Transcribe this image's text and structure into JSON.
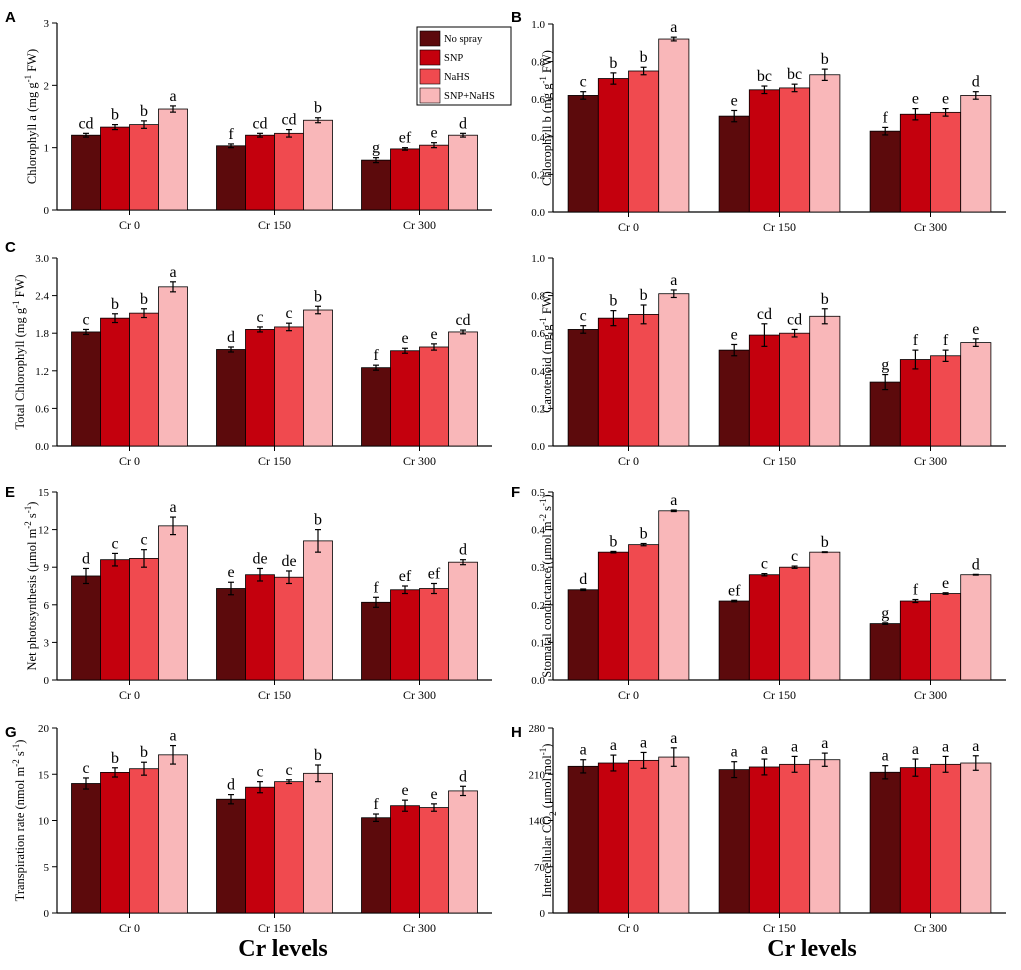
{
  "chart_data": [
    {
      "panel": "A",
      "type": "bar",
      "ylabel": "Chlorophyll a (mg g^-1 FW)",
      "ylim": [
        0,
        3
      ],
      "yticks": [
        "0",
        "1",
        "2",
        "3"
      ],
      "ytick_values": [
        0,
        1,
        2,
        3
      ],
      "categories": [
        "Cr 0",
        "Cr 150",
        "Cr 300"
      ],
      "series": [
        {
          "name": "No spray",
          "values": [
            1.2,
            1.03,
            0.8
          ],
          "errors": [
            0.03,
            0.03,
            0.04
          ],
          "letters": [
            "cd",
            "f",
            "g"
          ]
        },
        {
          "name": "SNP",
          "values": [
            1.33,
            1.2,
            0.98
          ],
          "errors": [
            0.04,
            0.03,
            0.02
          ],
          "letters": [
            "b",
            "cd",
            "ef"
          ]
        },
        {
          "name": "NaHS",
          "values": [
            1.37,
            1.23,
            1.04
          ],
          "errors": [
            0.06,
            0.06,
            0.04
          ],
          "letters": [
            "b",
            "cd",
            "e"
          ]
        },
        {
          "name": "SNP+NaHS",
          "values": [
            1.62,
            1.44,
            1.2
          ],
          "errors": [
            0.05,
            0.04,
            0.03
          ],
          "letters": [
            "a",
            "b",
            "d"
          ]
        }
      ]
    },
    {
      "panel": "B",
      "type": "bar",
      "ylabel": "Chlorophyll b (mg g^-1 FW)",
      "ylim": [
        0,
        1
      ],
      "yticks": [
        "0.0",
        "0.2",
        "0.4",
        "0.6",
        "0.8",
        "1.0"
      ],
      "ytick_values": [
        0,
        0.2,
        0.4,
        0.6,
        0.8,
        1.0
      ],
      "categories": [
        "Cr 0",
        "Cr 150",
        "Cr 300"
      ],
      "series": [
        {
          "name": "No spray",
          "values": [
            0.62,
            0.51,
            0.43
          ],
          "errors": [
            0.02,
            0.03,
            0.02
          ],
          "letters": [
            "c",
            "e",
            "f"
          ]
        },
        {
          "name": "SNP",
          "values": [
            0.71,
            0.65,
            0.52
          ],
          "errors": [
            0.03,
            0.02,
            0.03
          ],
          "letters": [
            "b",
            "bc",
            "e"
          ]
        },
        {
          "name": "NaHS",
          "values": [
            0.75,
            0.66,
            0.53
          ],
          "errors": [
            0.02,
            0.02,
            0.02
          ],
          "letters": [
            "b",
            "bc",
            "e"
          ]
        },
        {
          "name": "SNP+NaHS",
          "values": [
            0.92,
            0.73,
            0.62
          ],
          "errors": [
            0.01,
            0.03,
            0.02
          ],
          "letters": [
            "a",
            "b",
            "d"
          ]
        }
      ]
    },
    {
      "panel": "C",
      "type": "bar",
      "ylabel": "Total Chlorophyll (mg g^-1 FW)",
      "ylim": [
        0,
        3
      ],
      "yticks": [
        "0.0",
        "0.6",
        "1.2",
        "1.8",
        "2.4",
        "3.0"
      ],
      "ytick_values": [
        0,
        0.6,
        1.2,
        1.8,
        2.4,
        3.0
      ],
      "categories": [
        "Cr 0",
        "Cr 150",
        "Cr 300"
      ],
      "series": [
        {
          "name": "No spray",
          "values": [
            1.82,
            1.54,
            1.25
          ],
          "errors": [
            0.04,
            0.04,
            0.04
          ],
          "letters": [
            "c",
            "d",
            "f"
          ]
        },
        {
          "name": "SNP",
          "values": [
            2.04,
            1.86,
            1.52
          ],
          "errors": [
            0.07,
            0.04,
            0.04
          ],
          "letters": [
            "b",
            "c",
            "e"
          ]
        },
        {
          "name": "NaHS",
          "values": [
            2.12,
            1.9,
            1.58
          ],
          "errors": [
            0.07,
            0.06,
            0.05
          ],
          "letters": [
            "b",
            "c",
            "e"
          ]
        },
        {
          "name": "SNP+NaHS",
          "values": [
            2.54,
            2.17,
            1.82
          ],
          "errors": [
            0.08,
            0.06,
            0.03
          ],
          "letters": [
            "a",
            "b",
            "cd"
          ]
        }
      ]
    },
    {
      "panel": "D",
      "type": "bar",
      "ylabel": "Carotenoid (mg g^-1 FW)",
      "ylim": [
        0,
        1
      ],
      "yticks": [
        "0.0",
        "0.2",
        "0.4",
        "0.6",
        "0.8",
        "1.0"
      ],
      "ytick_values": [
        0,
        0.2,
        0.4,
        0.6,
        0.8,
        1.0
      ],
      "categories": [
        "Cr 0",
        "Cr 150",
        "Cr 300"
      ],
      "series": [
        {
          "name": "No spray",
          "values": [
            0.62,
            0.51,
            0.34
          ],
          "errors": [
            0.02,
            0.03,
            0.04
          ],
          "letters": [
            "c",
            "e",
            "g"
          ]
        },
        {
          "name": "SNP",
          "values": [
            0.68,
            0.59,
            0.46
          ],
          "errors": [
            0.04,
            0.06,
            0.05
          ],
          "letters": [
            "b",
            "cd",
            "f"
          ]
        },
        {
          "name": "NaHS",
          "values": [
            0.7,
            0.6,
            0.48
          ],
          "errors": [
            0.05,
            0.02,
            0.03
          ],
          "letters": [
            "b",
            "cd",
            "f"
          ]
        },
        {
          "name": "SNP+NaHS",
          "values": [
            0.81,
            0.69,
            0.55
          ],
          "errors": [
            0.02,
            0.04,
            0.02
          ],
          "letters": [
            "a",
            "b",
            "e"
          ]
        }
      ]
    },
    {
      "panel": "E",
      "type": "bar",
      "ylabel": "Net photosynthesis (μmol m^-2 s^-1)",
      "ylim": [
        0,
        15
      ],
      "yticks": [
        "0",
        "3",
        "6",
        "9",
        "12",
        "15"
      ],
      "ytick_values": [
        0,
        3,
        6,
        9,
        12,
        15
      ],
      "categories": [
        "Cr 0",
        "Cr 150",
        "Cr 300"
      ],
      "series": [
        {
          "name": "No spray",
          "values": [
            8.3,
            7.3,
            6.2
          ],
          "errors": [
            0.6,
            0.5,
            0.4
          ],
          "letters": [
            "d",
            "e",
            "f"
          ]
        },
        {
          "name": "SNP",
          "values": [
            9.6,
            8.4,
            7.2
          ],
          "errors": [
            0.5,
            0.5,
            0.3
          ],
          "letters": [
            "c",
            "de",
            "ef"
          ]
        },
        {
          "name": "NaHS",
          "values": [
            9.7,
            8.2,
            7.3
          ],
          "errors": [
            0.7,
            0.5,
            0.4
          ],
          "letters": [
            "c",
            "de",
            "ef"
          ]
        },
        {
          "name": "SNP+NaHS",
          "values": [
            12.3,
            11.1,
            9.4
          ],
          "errors": [
            0.7,
            0.9,
            0.2
          ],
          "letters": [
            "a",
            "b",
            "d"
          ]
        }
      ]
    },
    {
      "panel": "F",
      "type": "bar",
      "ylabel": "Stomatal conductance (μmol m^-2 s^-1)",
      "ylim": [
        0,
        0.5
      ],
      "yticks": [
        "0.0",
        "0.1",
        "0.2",
        "0.3",
        "0.4",
        "0.5"
      ],
      "ytick_values": [
        0,
        0.1,
        0.2,
        0.3,
        0.4,
        0.5
      ],
      "categories": [
        "Cr 0",
        "Cr 150",
        "Cr 300"
      ],
      "series": [
        {
          "name": "No spray",
          "values": [
            0.24,
            0.21,
            0.15
          ],
          "errors": [
            0.002,
            0.002,
            0.002
          ],
          "letters": [
            "d",
            "ef",
            "g"
          ]
        },
        {
          "name": "SNP",
          "values": [
            0.34,
            0.28,
            0.21
          ],
          "errors": [
            0.002,
            0.003,
            0.004
          ],
          "letters": [
            "b",
            "c",
            "f"
          ]
        },
        {
          "name": "NaHS",
          "values": [
            0.36,
            0.3,
            0.23
          ],
          "errors": [
            0.003,
            0.003,
            0.002
          ],
          "letters": [
            "b",
            "c",
            "e"
          ]
        },
        {
          "name": "SNP+NaHS",
          "values": [
            0.45,
            0.34,
            0.28
          ],
          "errors": [
            0.002,
            0.001,
            0.001
          ],
          "letters": [
            "a",
            "b",
            "d"
          ]
        }
      ]
    },
    {
      "panel": "G",
      "type": "bar",
      "ylabel": "Transpiration rate (nmol m^-2 s^-1)",
      "ylim": [
        0,
        20
      ],
      "yticks": [
        "0",
        "5",
        "10",
        "15",
        "20"
      ],
      "ytick_values": [
        0,
        5,
        10,
        15,
        20
      ],
      "categories": [
        "Cr 0",
        "Cr 150",
        "Cr 300"
      ],
      "series": [
        {
          "name": "No spray",
          "values": [
            14.0,
            12.3,
            10.3
          ],
          "errors": [
            0.6,
            0.5,
            0.4
          ],
          "letters": [
            "c",
            "d",
            "f"
          ]
        },
        {
          "name": "SNP",
          "values": [
            15.2,
            13.6,
            11.6
          ],
          "errors": [
            0.5,
            0.6,
            0.6
          ],
          "letters": [
            "b",
            "c",
            "e"
          ]
        },
        {
          "name": "NaHS",
          "values": [
            15.6,
            14.2,
            11.4
          ],
          "errors": [
            0.7,
            0.2,
            0.4
          ],
          "letters": [
            "b",
            "c",
            "e"
          ]
        },
        {
          "name": "SNP+NaHS",
          "values": [
            17.1,
            15.1,
            13.2
          ],
          "errors": [
            1.0,
            0.9,
            0.5
          ],
          "letters": [
            "a",
            "b",
            "d"
          ]
        }
      ]
    },
    {
      "panel": "H",
      "type": "bar",
      "ylabel": "Intercellular CO2 (μmol mol^-1)",
      "ylim": [
        0,
        280
      ],
      "yticks": [
        "0",
        "70",
        "140",
        "210",
        "280"
      ],
      "ytick_values": [
        0,
        70,
        140,
        210,
        280
      ],
      "categories": [
        "Cr 0",
        "Cr 150",
        "Cr 300"
      ],
      "series": [
        {
          "name": "No spray",
          "values": [
            222,
            217,
            213
          ],
          "errors": [
            10,
            12,
            10
          ],
          "letters": [
            "a",
            "a",
            "a"
          ]
        },
        {
          "name": "SNP",
          "values": [
            227,
            221,
            220
          ],
          "errors": [
            12,
            12,
            13
          ],
          "letters": [
            "a",
            "a",
            "a"
          ]
        },
        {
          "name": "NaHS",
          "values": [
            231,
            225,
            225
          ],
          "errors": [
            12,
            12,
            12
          ],
          "letters": [
            "a",
            "a",
            "a"
          ]
        },
        {
          "name": "SNP+NaHS",
          "values": [
            236,
            232,
            227
          ],
          "errors": [
            14,
            10,
            11
          ],
          "letters": [
            "a",
            "a",
            "a"
          ]
        }
      ]
    }
  ],
  "legend": [
    "No spray",
    "SNP",
    "NaHS",
    "SNP+NaHS"
  ],
  "colors": [
    "#5c0a0c",
    "#c4000d",
    "#f04a4f",
    "#f9b7b9"
  ],
  "xlabel": "Cr levels"
}
